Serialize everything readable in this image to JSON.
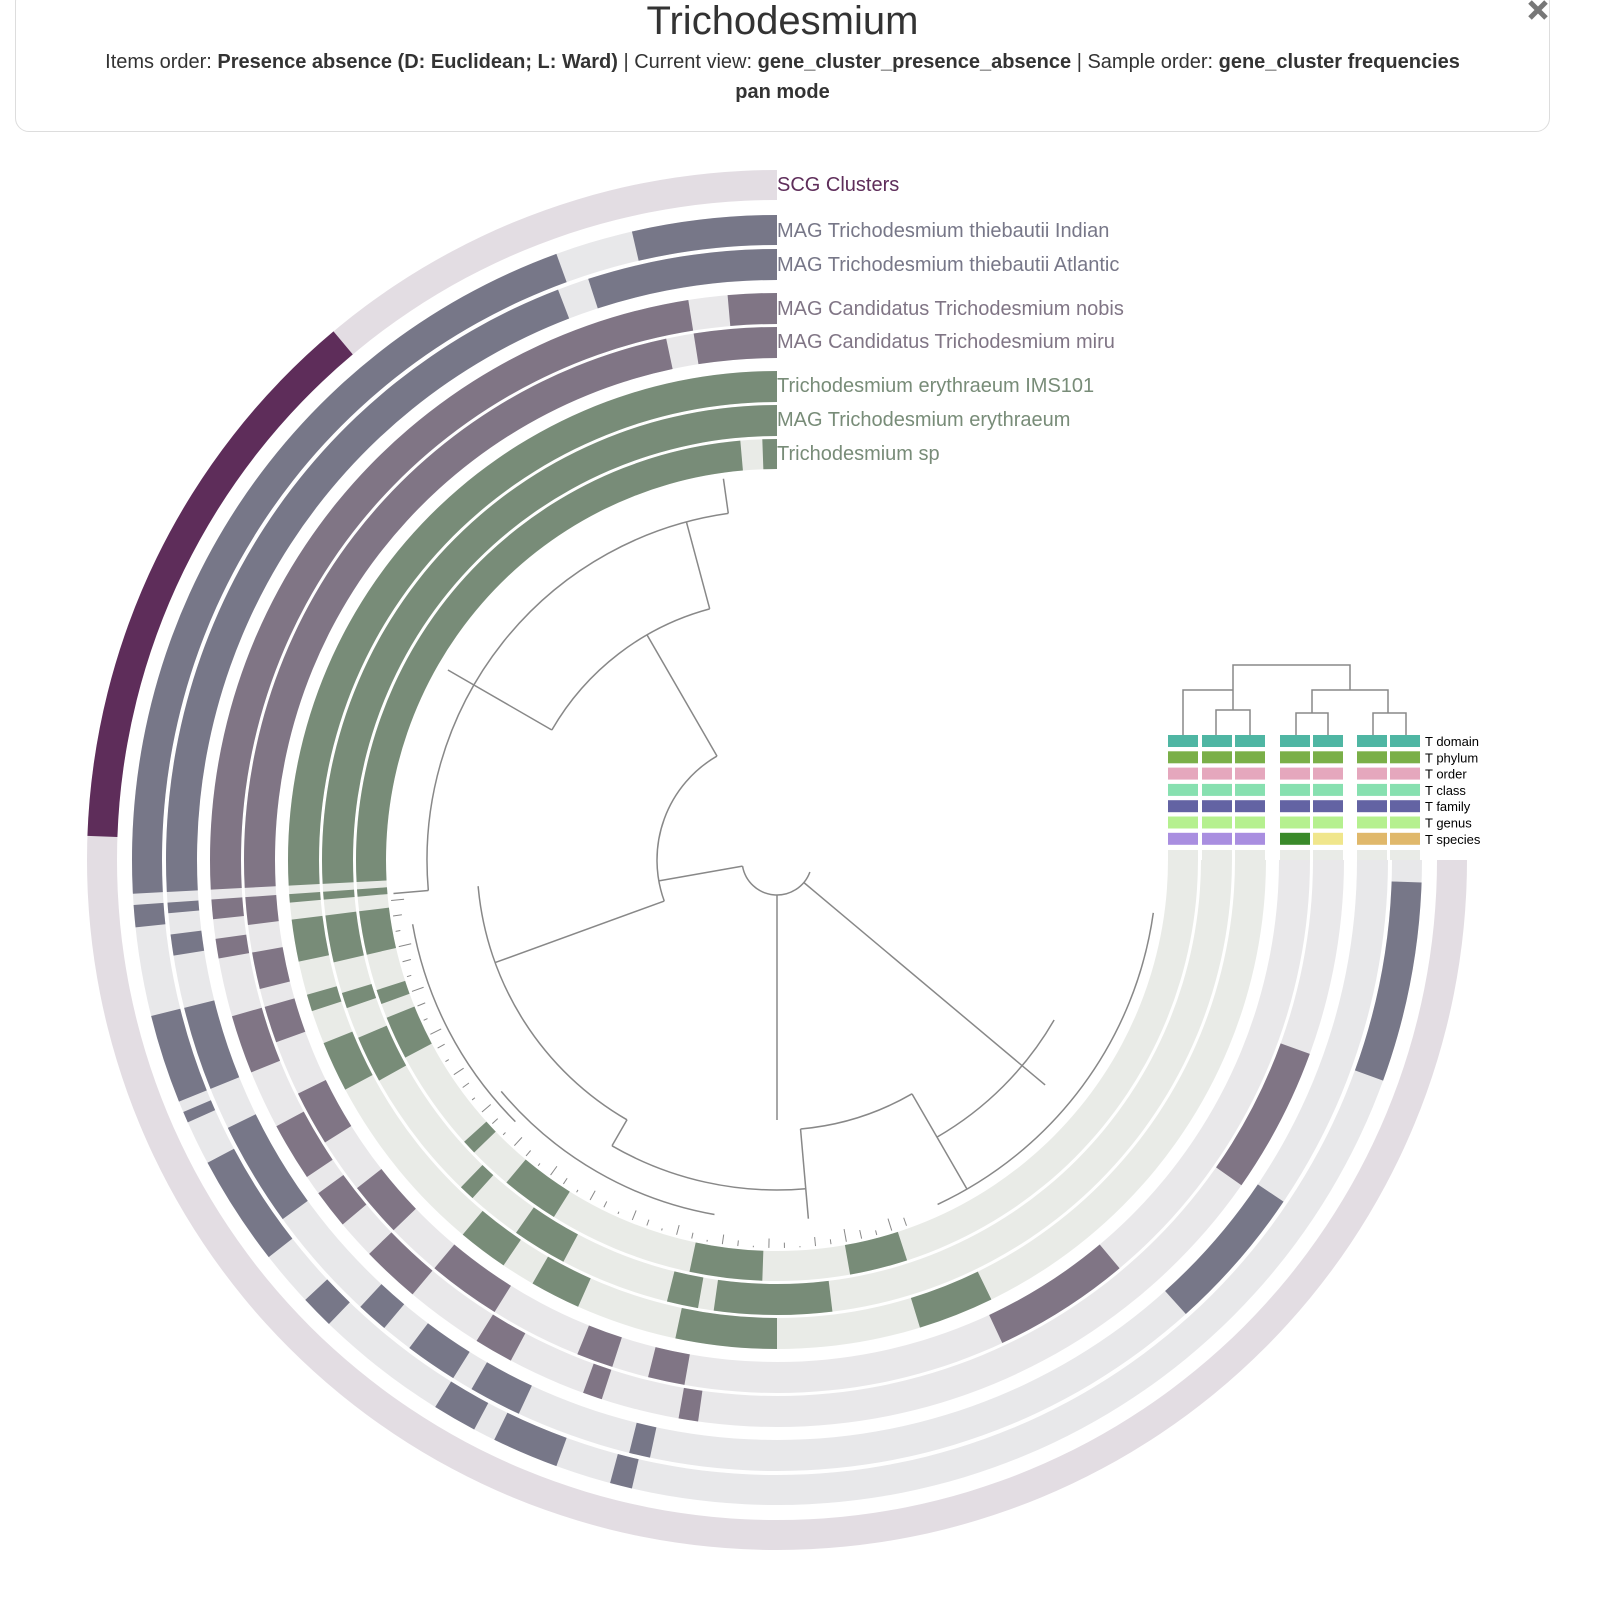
{
  "header": {
    "title": "Trichodesmium",
    "items_order_label": "Items order:",
    "items_order": "Presence absence (D: Euclidean; L: Ward)",
    "current_view_label": "| Current view:",
    "current_view": "gene_cluster_presence_absence",
    "sample_order_label": "| Sample order:",
    "sample_order": "gene_cluster frequencies",
    "mode": "pan mode"
  },
  "layers": [
    "SCG Clusters",
    "MAG Trichodesmium thiebautii Indian",
    "MAG Trichodesmium thiebautii Atlantic",
    "MAG Candidatus Trichodesmium nobis",
    "MAG Candidatus Trichodesmium miru",
    "Trichodesmium erythraeum IMS101",
    "MAG Trichodesmium erythraeum",
    "Trichodesmium sp"
  ],
  "taxonomy_legend": [
    "T domain",
    "T phylum",
    "T order",
    "T class",
    "T family",
    "T genus",
    "T species"
  ]
}
